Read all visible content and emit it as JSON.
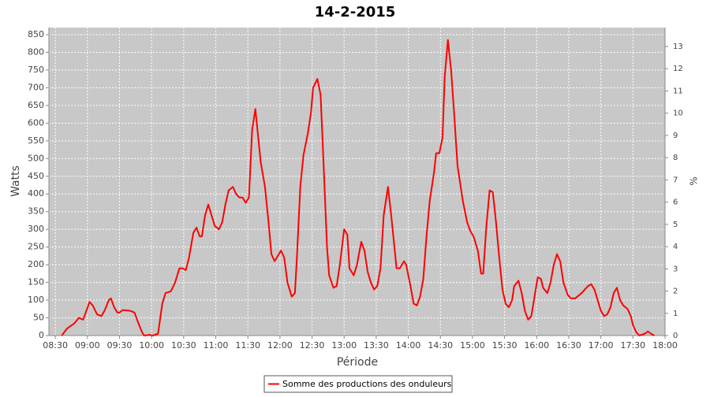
{
  "chart_data": {
    "type": "line",
    "title": "14-2-2015",
    "x_label": "Période",
    "y_label": "Watts",
    "y2_label": "%",
    "x": [
      "08:36",
      "08:41",
      "08:48",
      "08:52",
      "08:56",
      "08:59",
      "09:02",
      "09:05",
      "09:09",
      "09:13",
      "09:16",
      "09:20",
      "09:22",
      "09:25",
      "09:28",
      "09:30",
      "09:33",
      "09:40",
      "09:44",
      "09:47",
      "09:51",
      "09:53",
      "09:58",
      "10:01",
      "10:06",
      "10:10",
      "10:13",
      "10:18",
      "10:22",
      "10:26",
      "10:29",
      "10:32",
      "10:35",
      "10:39",
      "10:42",
      "10:45",
      "10:47",
      "10:50",
      "10:53",
      "10:56",
      "10:59",
      "11:03",
      "11:06",
      "11:09",
      "11:12",
      "11:16",
      "11:19",
      "11:22",
      "11:25",
      "11:28",
      "11:31",
      "11:34",
      "11:37",
      "11:39",
      "11:42",
      "11:46",
      "11:49",
      "11:52",
      "11:55",
      "11:58",
      "12:01",
      "12:04",
      "12:07",
      "12:11",
      "12:14",
      "12:16",
      "12:19",
      "12:22",
      "12:26",
      "12:29",
      "12:31",
      "12:35",
      "12:38",
      "12:41",
      "12:44",
      "12:46",
      "12:50",
      "12:53",
      "12:56",
      "13:00",
      "13:03",
      "13:05",
      "13:09",
      "13:12",
      "13:16",
      "13:19",
      "13:22",
      "13:25",
      "13:28",
      "13:31",
      "13:34",
      "13:37",
      "13:41",
      "13:44",
      "13:47",
      "13:49",
      "13:52",
      "13:56",
      "13:58",
      "14:02",
      "14:05",
      "14:08",
      "14:11",
      "14:14",
      "14:17",
      "14:20",
      "14:24",
      "14:26",
      "14:29",
      "14:32",
      "14:34",
      "14:37",
      "14:40",
      "14:43",
      "14:46",
      "14:49",
      "14:51",
      "14:55",
      "14:58",
      "15:01",
      "15:05",
      "15:08",
      "15:10",
      "15:13",
      "15:16",
      "15:19",
      "15:22",
      "15:25",
      "15:28",
      "15:31",
      "15:34",
      "15:37",
      "15:39",
      "15:43",
      "15:46",
      "15:49",
      "15:52",
      "15:55",
      "15:58",
      "16:01",
      "16:04",
      "16:06",
      "16:10",
      "16:13",
      "16:16",
      "16:19",
      "16:22",
      "16:25",
      "16:29",
      "16:32",
      "16:36",
      "16:42",
      "16:48",
      "16:51",
      "16:54",
      "16:57",
      "17:00",
      "17:03",
      "17:06",
      "17:09",
      "17:12",
      "17:15",
      "17:18",
      "17:21",
      "17:25",
      "17:28",
      "17:30",
      "17:33",
      "17:36",
      "17:41",
      "17:44",
      "17:47",
      "17:50"
    ],
    "series": [
      {
        "name": "Somme des productions des onduleurs",
        "color": "#ff0000",
        "values": [
          0,
          20,
          35,
          50,
          45,
          70,
          95,
          85,
          60,
          55,
          70,
          100,
          105,
          80,
          65,
          65,
          72,
          70,
          65,
          40,
          10,
          0,
          2,
          0,
          5,
          90,
          120,
          125,
          150,
          190,
          190,
          185,
          220,
          290,
          305,
          280,
          280,
          340,
          370,
          340,
          310,
          300,
          320,
          370,
          410,
          420,
          400,
          390,
          390,
          375,
          390,
          580,
          640,
          580,
          490,
          420,
          330,
          230,
          210,
          225,
          240,
          220,
          150,
          110,
          120,
          230,
          420,
          510,
          570,
          630,
          700,
          725,
          680,
          470,
          250,
          170,
          135,
          140,
          200,
          300,
          285,
          190,
          170,
          200,
          265,
          240,
          180,
          150,
          130,
          140,
          190,
          340,
          420,
          340,
          250,
          190,
          190,
          210,
          200,
          140,
          90,
          85,
          110,
          160,
          280,
          380,
          460,
          515,
          515,
          560,
          730,
          835,
          750,
          620,
          480,
          420,
          380,
          320,
          295,
          280,
          240,
          175,
          175,
          310,
          410,
          405,
          320,
          220,
          130,
          90,
          80,
          100,
          140,
          155,
          120,
          70,
          45,
          55,
          110,
          165,
          160,
          135,
          120,
          150,
          200,
          230,
          210,
          150,
          115,
          105,
          105,
          120,
          140,
          145,
          130,
          100,
          70,
          55,
          60,
          80,
          120,
          135,
          100,
          85,
          75,
          55,
          30,
          10,
          0,
          5,
          12,
          5,
          0
        ]
      }
    ],
    "xlim": [
      "08:24",
      "18:00"
    ],
    "xticks": [
      "08:30",
      "09:00",
      "09:30",
      "10:00",
      "10:30",
      "11:00",
      "11:30",
      "12:00",
      "12:30",
      "13:00",
      "13:30",
      "14:00",
      "14:30",
      "15:00",
      "15:30",
      "16:00",
      "16:30",
      "17:00",
      "17:30",
      "18:00"
    ],
    "ylim": [
      0,
      870
    ],
    "yticks": [
      0,
      50,
      100,
      150,
      200,
      250,
      300,
      350,
      400,
      450,
      500,
      550,
      600,
      650,
      700,
      750,
      800,
      850
    ],
    "y2lim": [
      0,
      13.85
    ],
    "y2ticks": [
      0,
      1,
      2,
      3,
      4,
      5,
      6,
      7,
      8,
      9,
      10,
      11,
      12,
      13
    ],
    "grid": true,
    "legend": "bottom"
  }
}
